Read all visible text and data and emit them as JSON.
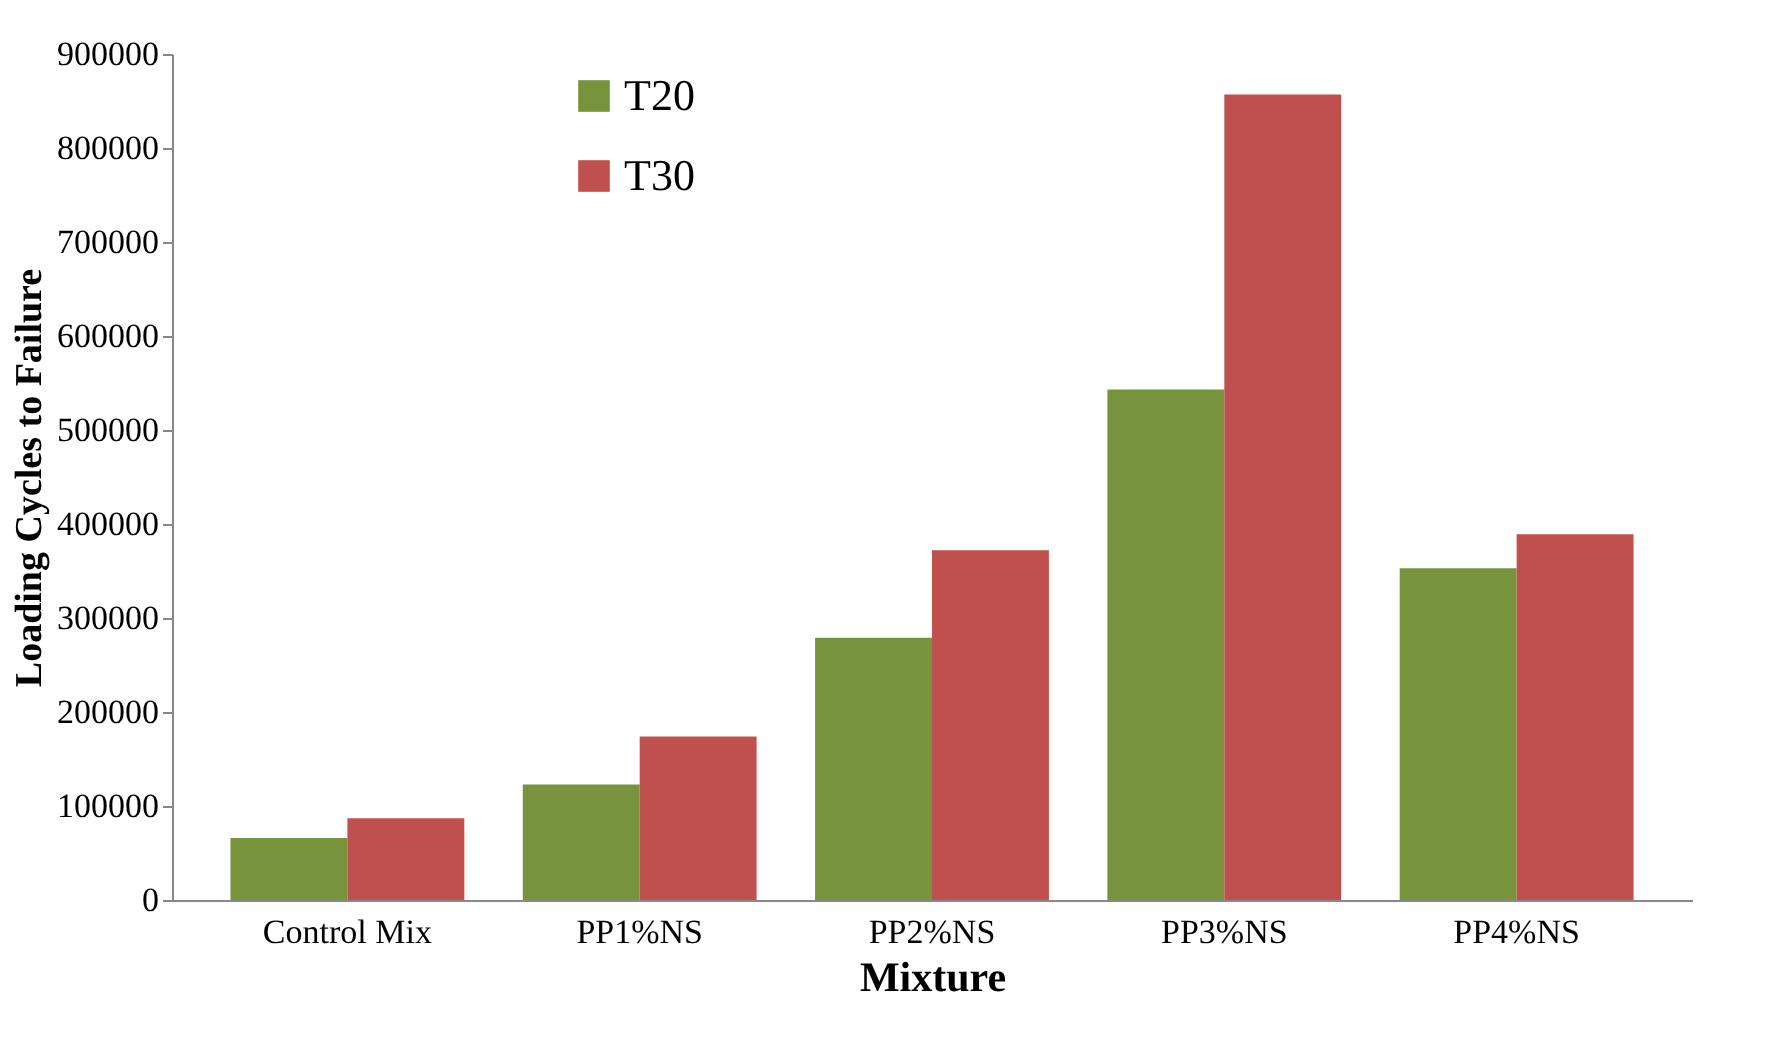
{
  "chart_data": {
    "type": "bar",
    "xlabel": "Mixture",
    "ylabel": "Loading Cycles to Failure",
    "categories": [
      "Control Mix",
      "PP1%NS",
      "PP2%NS",
      "PP3%NS",
      "PP4%NS"
    ],
    "series": [
      {
        "name": "T20",
        "color": "#77933c",
        "values": [
          66000,
          123000,
          279000,
          543000,
          353000
        ]
      },
      {
        "name": "T30",
        "color": "#c0504d",
        "values": [
          87000,
          174000,
          372000,
          857000,
          389000
        ]
      }
    ],
    "ylim": [
      0,
      900000
    ],
    "yticks": [
      0,
      100000,
      200000,
      300000,
      400000,
      500000,
      600000,
      700000,
      800000,
      900000
    ],
    "grid": false,
    "legend": "top left"
  }
}
